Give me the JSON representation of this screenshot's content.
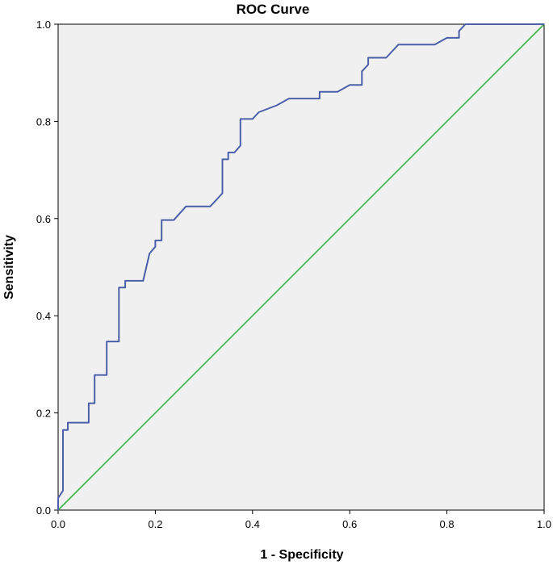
{
  "chart_data": {
    "type": "line",
    "title": "ROC Curve",
    "xlabel": "1 - Specificity",
    "ylabel": "Sensitivity",
    "xlim": [
      0.0,
      1.0
    ],
    "ylim": [
      0.0,
      1.0
    ],
    "x_ticks": [
      "0.0",
      "0.2",
      "0.4",
      "0.6",
      "0.8",
      "1.0"
    ],
    "y_ticks": [
      "0.0",
      "0.2",
      "0.4",
      "0.6",
      "0.8",
      "1.0"
    ],
    "grid": false,
    "legend": "none",
    "colors": {
      "background": "#f0f0f0",
      "roc": "#4a5fa8",
      "reference": "#3cb44b"
    },
    "series": [
      {
        "x": [
          0.0,
          0.0,
          0.01,
          0.01,
          0.02,
          0.02,
          0.063,
          0.063,
          0.075,
          0.075,
          0.1,
          0.1,
          0.125,
          0.125,
          0.138,
          0.138,
          0.175,
          0.188,
          0.188,
          0.2,
          0.2,
          0.213,
          0.213,
          0.238,
          0.263,
          0.288,
          0.313,
          0.338,
          0.338,
          0.35,
          0.35,
          0.363,
          0.375,
          0.375,
          0.4,
          0.413,
          0.45,
          0.475,
          0.5,
          0.538,
          0.538,
          0.575,
          0.6,
          0.625,
          0.625,
          0.638,
          0.638,
          0.675,
          0.7,
          0.775,
          0.8,
          0.825,
          0.825,
          0.838,
          0.838,
          1.0
        ],
        "y": [
          0.0,
          0.025,
          0.04,
          0.165,
          0.165,
          0.18,
          0.18,
          0.22,
          0.22,
          0.278,
          0.278,
          0.347,
          0.347,
          0.458,
          0.458,
          0.472,
          0.472,
          0.528,
          0.528,
          0.542,
          0.555,
          0.555,
          0.597,
          0.597,
          0.625,
          0.625,
          0.625,
          0.652,
          0.722,
          0.722,
          0.736,
          0.736,
          0.75,
          0.805,
          0.805,
          0.819,
          0.833,
          0.847,
          0.847,
          0.847,
          0.861,
          0.861,
          0.875,
          0.875,
          0.903,
          0.917,
          0.931,
          0.931,
          0.958,
          0.958,
          0.972,
          0.972,
          0.986,
          1.0,
          1.0,
          1.0
        ]
      },
      {
        "x": [
          0.0,
          1.0
        ],
        "y": [
          0.0,
          1.0
        ]
      }
    ]
  }
}
